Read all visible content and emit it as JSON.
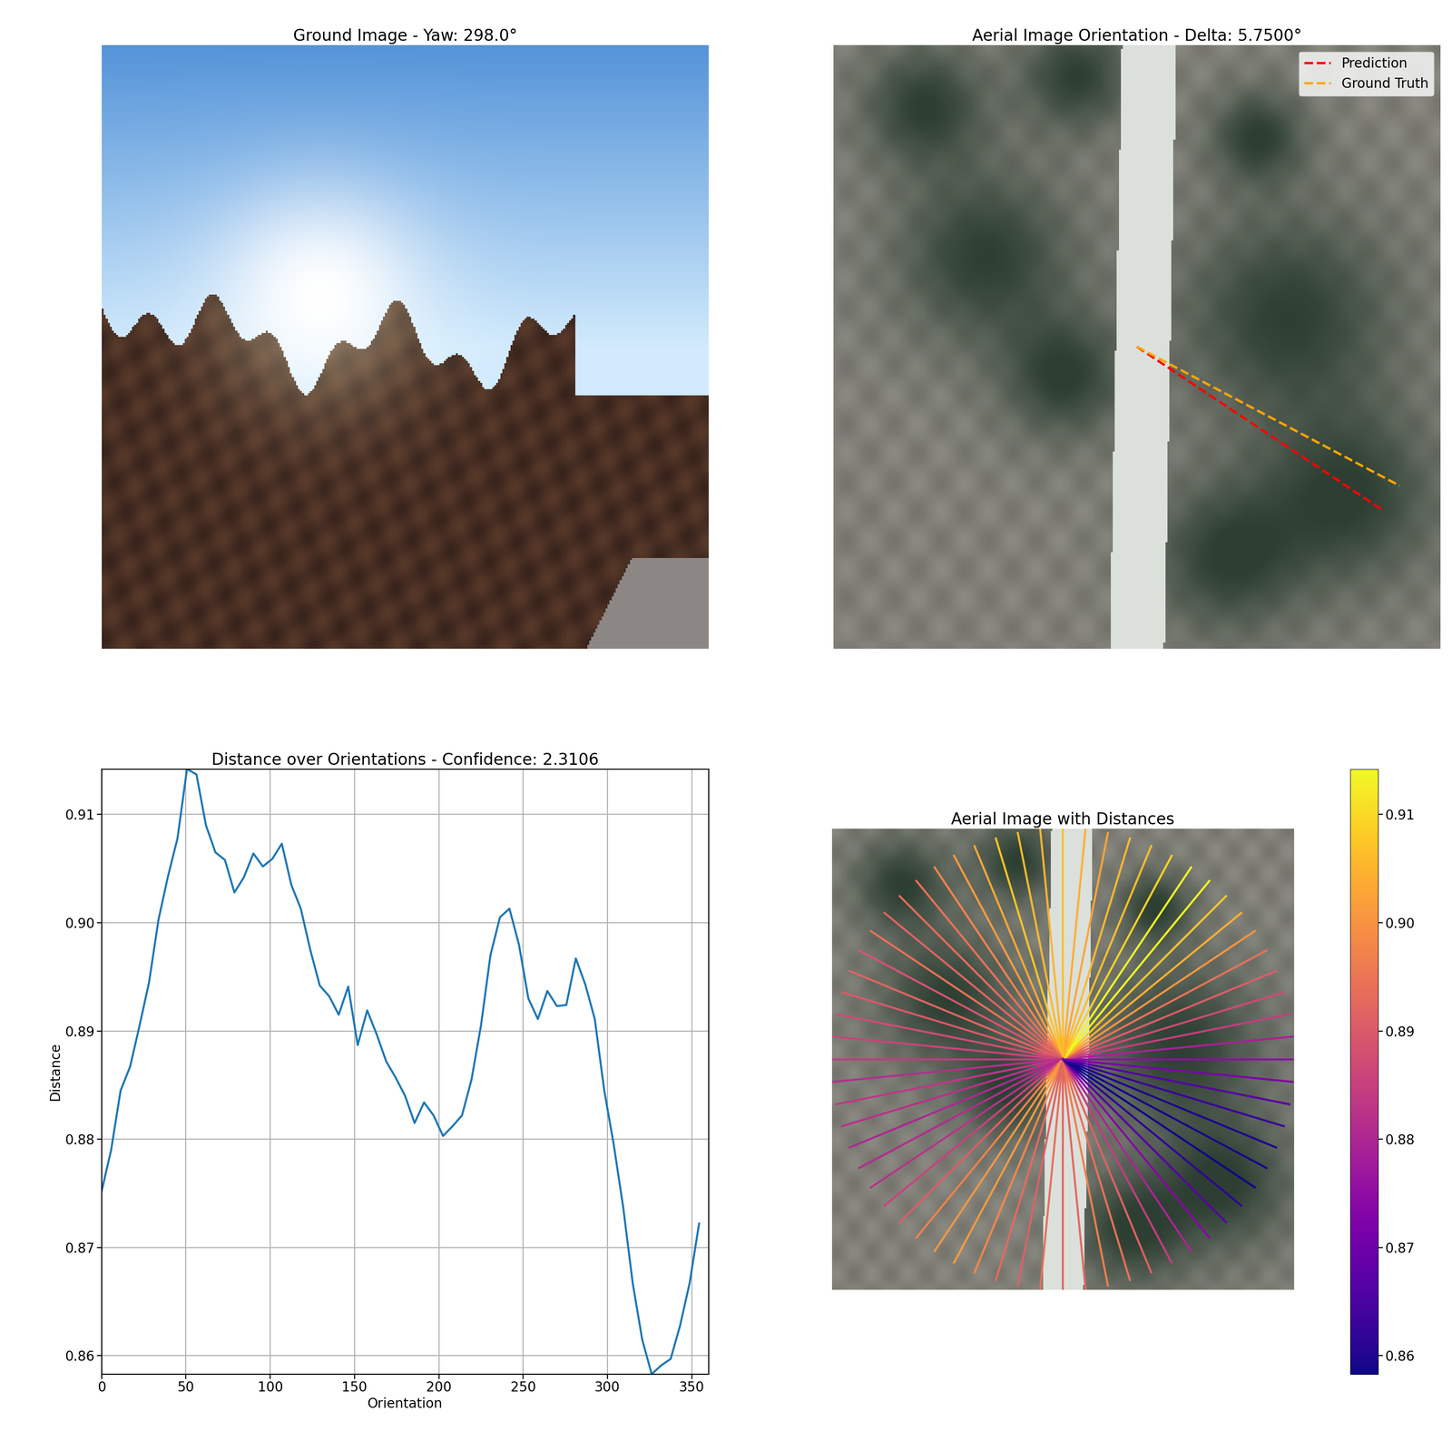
{
  "chart_data": [
    {
      "type": "image",
      "title": "Ground Image - Yaw: 298.0°"
    },
    {
      "type": "image",
      "title": "Aerial Image Orientation - Delta: 5.7500°",
      "legend": "upper right",
      "series": [
        {
          "name": "Prediction",
          "color": "red",
          "line_style": "dashed",
          "orientation": 326.25
        },
        {
          "name": "Ground Truth",
          "color": "orange",
          "line_style": "dashed",
          "orientation": 332.0
        }
      ]
    },
    {
      "type": "line",
      "title": "Distance over Orientations - Confidence: 2.3106",
      "x_label": "Orientation",
      "y_label": "Distance",
      "color": "#1f77b4",
      "grid": true,
      "x": [
        0,
        5.625,
        11.25,
        16.875,
        22.5,
        28.125,
        33.75,
        39.375,
        45,
        50.625,
        56.25,
        61.875,
        67.5,
        73.125,
        78.75,
        84.375,
        90,
        95.625,
        101.25,
        106.875,
        112.5,
        118.125,
        123.75,
        129.375,
        135,
        140.625,
        146.25,
        151.875,
        157.5,
        163.125,
        168.75,
        174.375,
        180,
        185.625,
        191.25,
        196.875,
        202.5,
        208.125,
        213.75,
        219.375,
        225,
        230.625,
        236.25,
        241.875,
        247.5,
        253.125,
        258.75,
        264.375,
        270,
        275.625,
        281.25,
        286.875,
        292.5,
        298.125,
        303.75,
        309.375,
        315,
        320.625,
        326.25,
        331.875,
        337.5,
        343.125,
        348.75,
        354.375
      ],
      "values": [
        0.8752,
        0.879,
        0.8845,
        0.8867,
        0.8905,
        0.8945,
        0.9003,
        0.9043,
        0.9078,
        0.9142,
        0.9137,
        0.909,
        0.9065,
        0.9058,
        0.9028,
        0.9042,
        0.9064,
        0.9052,
        0.9059,
        0.9073,
        0.9035,
        0.9013,
        0.8975,
        0.8942,
        0.8932,
        0.8915,
        0.8941,
        0.8887,
        0.8919,
        0.8897,
        0.8872,
        0.8857,
        0.884,
        0.8815,
        0.8834,
        0.8822,
        0.8803,
        0.8812,
        0.8822,
        0.8855,
        0.8905,
        0.897,
        0.9005,
        0.9013,
        0.898,
        0.893,
        0.8911,
        0.8937,
        0.8923,
        0.8924,
        0.8967,
        0.8943,
        0.8911,
        0.8845,
        0.8795,
        0.8737,
        0.8667,
        0.8615,
        0.8583,
        0.8591,
        0.8597,
        0.8628,
        0.8667,
        0.8722
      ],
      "xlim": [
        0,
        360
      ],
      "ylim": [
        0.8583,
        0.9142
      ],
      "xticks": [
        0,
        50,
        100,
        150,
        200,
        250,
        300,
        350
      ],
      "yticks": [
        0.86,
        0.87,
        0.88,
        0.89,
        {
          "value": 0.9,
          "label": "0.90"
        },
        0.91
      ]
    },
    {
      "type": "image",
      "title": "Aerial Image with Distances",
      "orientations": [
        0,
        5.625,
        11.25,
        16.875,
        22.5,
        28.125,
        33.75,
        39.375,
        45,
        50.625,
        56.25,
        61.875,
        67.5,
        73.125,
        78.75,
        84.375,
        90,
        95.625,
        101.25,
        106.875,
        112.5,
        118.125,
        123.75,
        129.375,
        135,
        140.625,
        146.25,
        151.875,
        157.5,
        163.125,
        168.75,
        174.375,
        180,
        185.625,
        191.25,
        196.875,
        202.5,
        208.125,
        213.75,
        219.375,
        225,
        230.625,
        236.25,
        241.875,
        247.5,
        253.125,
        258.75,
        264.375,
        270,
        275.625,
        281.25,
        286.875,
        292.5,
        298.125,
        303.75,
        309.375,
        315,
        320.625,
        326.25,
        331.875,
        337.5,
        343.125,
        348.75,
        354.375
      ],
      "distances": [
        0.8752,
        0.879,
        0.8845,
        0.8867,
        0.8905,
        0.8945,
        0.9003,
        0.9043,
        0.9078,
        0.9142,
        0.9137,
        0.909,
        0.9065,
        0.9058,
        0.9028,
        0.9042,
        0.9064,
        0.9052,
        0.9059,
        0.9073,
        0.9035,
        0.9013,
        0.8975,
        0.8942,
        0.8932,
        0.8915,
        0.8941,
        0.8887,
        0.8919,
        0.8897,
        0.8872,
        0.8857,
        0.884,
        0.8815,
        0.8834,
        0.8822,
        0.8803,
        0.8812,
        0.8822,
        0.8855,
        0.8905,
        0.897,
        0.9005,
        0.9013,
        0.898,
        0.893,
        0.8911,
        0.8937,
        0.8923,
        0.8924,
        0.8967,
        0.8943,
        0.8911,
        0.8845,
        0.8795,
        0.8737,
        0.8667,
        0.8615,
        0.8583,
        0.8591,
        0.8597,
        0.8628,
        0.8667,
        0.8722
      ],
      "colorbar_range": [
        0.8583,
        0.9142
      ],
      "colorbar_ticks": [
        0.86,
        0.87,
        0.88,
        0.89,
        {
          "value": 0.9,
          "label": "0.90"
        },
        0.91
      ]
    }
  ]
}
